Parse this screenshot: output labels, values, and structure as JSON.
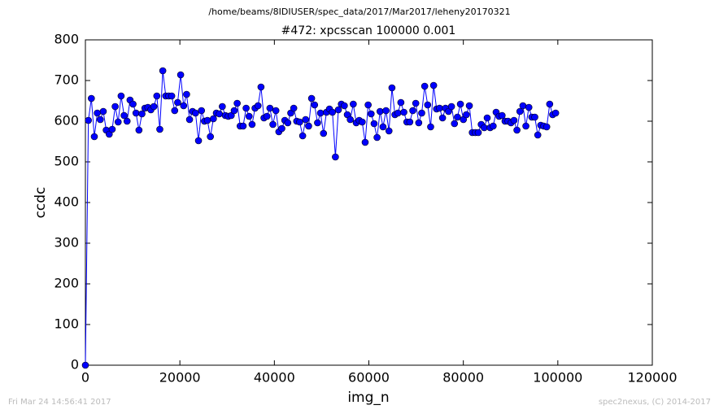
{
  "chart_data": {
    "type": "line",
    "suptitle": "/home/beams/8IDIUSER/spec_data/2017/Mar2017/leheny20170321",
    "title": "#472: xpcsscan 100000 0.001",
    "xlabel": "img_n",
    "ylabel": "ccdc",
    "footer_left": "Fri Mar 24 14:56:41 2017",
    "footer_right": "spec2nexus, (C) 2014-2017",
    "x": [
      0,
      630,
      1260,
      1890,
      2520,
      3150,
      3780,
      4410,
      5040,
      5670,
      6300,
      6930,
      7560,
      8190,
      8820,
      9450,
      10080,
      10710,
      11340,
      11970,
      12600,
      13230,
      13860,
      14490,
      15120,
      15750,
      16380,
      17010,
      17640,
      18270,
      18900,
      19530,
      20160,
      20790,
      21420,
      22050,
      22680,
      23310,
      23940,
      24570,
      25200,
      25830,
      26460,
      27090,
      27720,
      28350,
      28980,
      29610,
      30240,
      30870,
      31500,
      32130,
      32760,
      33390,
      34020,
      34650,
      35280,
      35910,
      36540,
      37170,
      37800,
      38430,
      39060,
      39690,
      40320,
      40950,
      41580,
      42210,
      42840,
      43470,
      44100,
      44730,
      45360,
      45990,
      46620,
      47250,
      47880,
      48510,
      49140,
      49770,
      50400,
      51030,
      51660,
      52290,
      52920,
      53550,
      54180,
      54810,
      55440,
      56070,
      56700,
      57330,
      57960,
      58590,
      59220,
      59850,
      60480,
      61110,
      61740,
      62370,
      63000,
      63630,
      64260,
      64890,
      65520,
      66150,
      66780,
      67410,
      68040,
      68670,
      69300,
      69930,
      70560,
      71190,
      71820,
      72450,
      73080,
      73710,
      74340,
      74970,
      75600,
      76230,
      76860,
      77490,
      78120,
      78750,
      79380,
      80010,
      80640,
      81270,
      81900,
      82530,
      83160,
      83790,
      84420,
      85050,
      85680,
      86310,
      86940,
      87570,
      88200,
      88830,
      89460,
      90090,
      90720,
      91350,
      91980,
      92610,
      93240,
      93870,
      94500,
      95130,
      95760,
      96390,
      97020,
      97650,
      98280,
      98910,
      99540
    ],
    "series": [
      {
        "color": "#0000ff",
        "values": [
          0,
          602,
          656,
          562,
          620,
          604,
          624,
          578,
          568,
          580,
          636,
          598,
          662,
          614,
          600,
          652,
          642,
          620,
          578,
          618,
          632,
          634,
          628,
          636,
          662,
          580,
          724,
          662,
          662,
          662,
          626,
          646,
          714,
          638,
          666,
          604,
          624,
          620,
          552,
          626,
          600,
          602,
          562,
          606,
          620,
          618,
          636,
          614,
          612,
          614,
          626,
          644,
          588,
          588,
          632,
          612,
          592,
          632,
          638,
          684,
          608,
          612,
          632,
          592,
          626,
          574,
          582,
          602,
          596,
          620,
          632,
          600,
          598,
          564,
          604,
          588,
          656,
          640,
          596,
          620,
          570,
          622,
          630,
          622,
          512,
          628,
          642,
          638,
          616,
          604,
          642,
          596,
          602,
          598,
          548,
          640,
          618,
          594,
          560,
          624,
          586,
          626,
          576,
          682,
          616,
          620,
          646,
          622,
          598,
          598,
          626,
          644,
          596,
          620,
          686,
          640,
          586,
          688,
          630,
          632,
          608,
          632,
          624,
          636,
          594,
          610,
          642,
          604,
          616,
          638,
          572,
          572,
          572,
          592,
          584,
          608,
          584,
          588,
          622,
          612,
          614,
          600,
          600,
          596,
          602,
          578,
          624,
          638,
          588,
          634,
          610,
          610,
          566,
          590,
          588,
          586,
          642,
          616,
          620
        ]
      }
    ],
    "xlim": [
      0,
      120000
    ],
    "xticks": [
      0,
      20000,
      40000,
      60000,
      80000,
      100000,
      120000
    ],
    "ylim": [
      0,
      800
    ],
    "yticks": [
      0,
      100,
      200,
      300,
      400,
      500,
      600,
      700,
      800
    ]
  }
}
